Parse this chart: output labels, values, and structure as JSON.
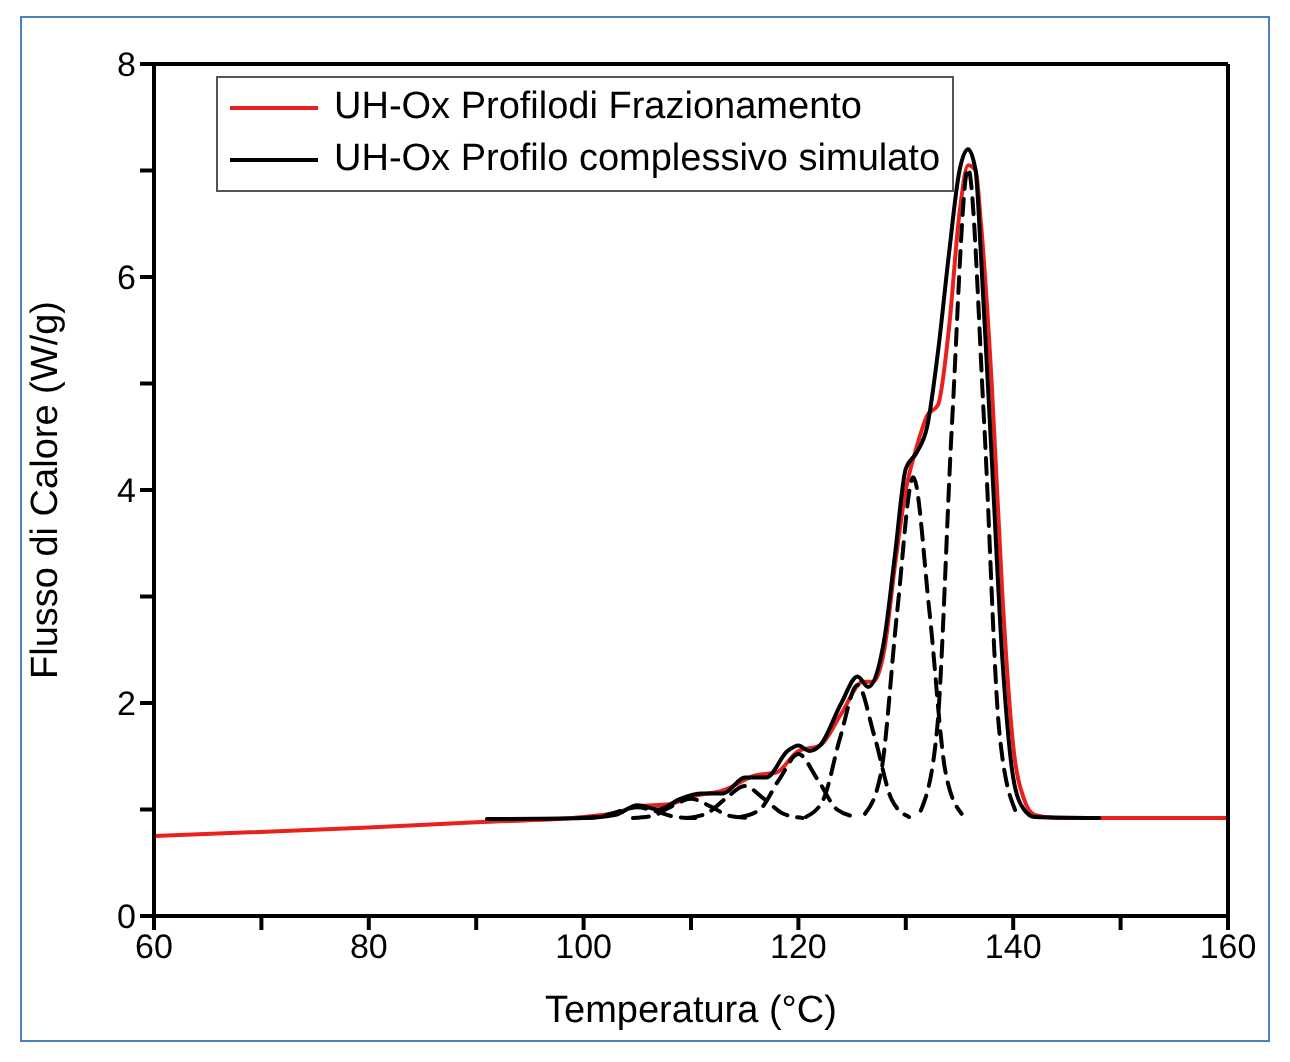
{
  "chart_data": {
    "type": "line",
    "xlabel": "Temperatura (°C)",
    "ylabel": "Flusso di Calore (W/g)",
    "xlim": [
      60,
      160
    ],
    "ylim": [
      0,
      8
    ],
    "xticks": [
      60,
      {
        "value": 70,
        "label": null
      },
      80,
      {
        "value": 90,
        "label": null
      },
      100,
      {
        "value": 110,
        "label": null
      },
      120,
      {
        "value": 130,
        "label": null
      },
      140,
      {
        "value": 150,
        "label": null
      },
      160
    ],
    "yticks": [
      0,
      {
        "value": 1,
        "label": null
      },
      2,
      {
        "value": 3,
        "label": null
      },
      4,
      {
        "value": 5,
        "label": null
      },
      6,
      {
        "value": 7,
        "label": null
      },
      8
    ],
    "grid": false,
    "legend": "top left",
    "marker": "none",
    "line_style": "solid",
    "series": [
      {
        "name": "UH-Ox Profilodi Frazionamento",
        "color": "#e8211d",
        "x": [
          60,
          80,
          90,
          100,
          103,
          105,
          108,
          110,
          113,
          116,
          118,
          120,
          122,
          124,
          126,
          127,
          128,
          129,
          130,
          131,
          132,
          133,
          134,
          135,
          135.8,
          136.5,
          137,
          138,
          139,
          140,
          141,
          142,
          144,
          160
        ],
        "values": [
          0.75,
          0.83,
          0.88,
          0.93,
          0.97,
          1.03,
          1.05,
          1.12,
          1.18,
          1.32,
          1.35,
          1.55,
          1.6,
          1.9,
          2.2,
          2.2,
          2.5,
          3.3,
          4.0,
          4.4,
          4.7,
          4.8,
          5.5,
          6.6,
          7.05,
          7.0,
          6.5,
          5.0,
          3.0,
          1.6,
          1.1,
          0.95,
          0.92,
          0.92
        ]
      },
      {
        "name": "UH-Ox Profilo complessivo simulato",
        "color": "#000000",
        "x": [
          91,
          100,
          103,
          105,
          107,
          109,
          111,
          113,
          115,
          117,
          119,
          120,
          121,
          122,
          124,
          125.5,
          126.5,
          128,
          129,
          130,
          131,
          132,
          133,
          134,
          135,
          135.8,
          136.5,
          137,
          138,
          139,
          140,
          141,
          142,
          148
        ],
        "values": [
          0.91,
          0.92,
          0.95,
          1.04,
          1.0,
          1.1,
          1.15,
          1.15,
          1.3,
          1.3,
          1.55,
          1.6,
          1.55,
          1.6,
          2.0,
          2.25,
          2.15,
          2.6,
          3.4,
          4.2,
          4.35,
          4.6,
          5.3,
          6.2,
          7.0,
          7.2,
          7.0,
          6.2,
          4.3,
          2.4,
          1.3,
          1.0,
          0.93,
          0.92
        ]
      },
      {
        "color": "#000000",
        "line_style": "dashed",
        "x": [
          99.6,
          101.4,
          103.2,
          105,
          106.8,
          108.6,
          110.4
        ],
        "values": [
          0.92,
          0.93,
          0.98,
          1.02,
          0.98,
          0.93,
          0.92
        ]
      },
      {
        "color": "#000000",
        "line_style": "dashed",
        "x": [
          104.6,
          106.4,
          108.2,
          110,
          111.8,
          113.6,
          115.4
        ],
        "values": [
          0.92,
          0.94,
          1.03,
          1.1,
          1.03,
          0.94,
          0.92
        ]
      },
      {
        "color": "#000000",
        "line_style": "dashed",
        "x": [
          109.6,
          111.4,
          113.2,
          115,
          116.8,
          118.6,
          120.4
        ],
        "values": [
          0.92,
          0.96,
          1.1,
          1.22,
          1.1,
          0.96,
          0.92
        ]
      },
      {
        "color": "#000000",
        "line_style": "dashed",
        "x": [
          114.6,
          116.4,
          118.2,
          120,
          121.8,
          123.6,
          125.4
        ],
        "values": [
          0.93,
          1.0,
          1.28,
          1.52,
          1.28,
          1.0,
          0.93
        ]
      },
      {
        "color": "#000000",
        "line_style": "dashed",
        "x": [
          120.7,
          122.3,
          123.9,
          125.5,
          127.1,
          128.7,
          130.3
        ],
        "values": [
          0.93,
          1.09,
          1.68,
          2.17,
          1.68,
          1.09,
          0.93
        ]
      },
      {
        "color": "#000000",
        "line_style": "dashed",
        "x": [
          126.2,
          127.7,
          129.2,
          130.7,
          132.2,
          133.7,
          135.2
        ],
        "values": [
          0.96,
          1.35,
          2.86,
          4.12,
          2.86,
          1.35,
          0.96
        ]
      },
      {
        "color": "#000000",
        "line_style": "dashed",
        "x": [
          131.4,
          132.9,
          134.3,
          135.8,
          137.3,
          138.7,
          140.2
        ],
        "values": [
          0.99,
          1.74,
          4.62,
          7.02,
          4.62,
          1.74,
          0.99
        ]
      }
    ]
  }
}
